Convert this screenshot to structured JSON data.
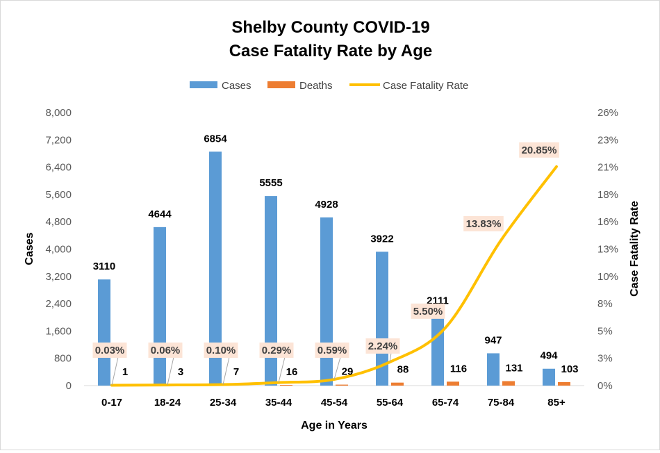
{
  "chart_data": {
    "type": "bar",
    "title_lines": [
      "Shelby County COVID-19",
      "Case Fatality Rate by Age"
    ],
    "xlabel": "Age in Years",
    "ylabel": "Cases",
    "y2label": "Case Fatality Rate",
    "categories": [
      "0-17",
      "18-24",
      "25-34",
      "35-44",
      "45-54",
      "55-64",
      "65-74",
      "75-84",
      "85+"
    ],
    "series": [
      {
        "name": "Cases",
        "type": "bar",
        "axis": "left",
        "color": "#5b9bd5",
        "values": [
          3110,
          4644,
          6854,
          5555,
          4928,
          3922,
          2111,
          947,
          494
        ],
        "labels": [
          "3110",
          "4644",
          "6854",
          "5555",
          "4928",
          "3922",
          "2111",
          "947",
          "494"
        ]
      },
      {
        "name": "Deaths",
        "type": "bar",
        "axis": "left",
        "color": "#ed7d31",
        "values": [
          1,
          3,
          7,
          16,
          29,
          88,
          116,
          131,
          103
        ],
        "labels": [
          "1",
          "3",
          "7",
          "16",
          "29",
          "88",
          "116",
          "131",
          "103"
        ]
      },
      {
        "name": "Case Fatality Rate",
        "type": "line",
        "axis": "right",
        "color": "#ffc000",
        "values": [
          0.03,
          0.06,
          0.1,
          0.29,
          0.59,
          2.24,
          5.5,
          13.83,
          20.85
        ],
        "labels": [
          "0.03%",
          "0.06%",
          "0.10%",
          "0.29%",
          "0.59%",
          "2.24%",
          "5.50%",
          "13.83%",
          "20.85%"
        ]
      }
    ],
    "ylim": [
      0,
      8000
    ],
    "yticks": [
      "0",
      "800",
      "1,600",
      "2,400",
      "3,200",
      "4,000",
      "4,800",
      "5,600",
      "6,400",
      "7,200",
      "8,000"
    ],
    "y2lim": [
      0,
      26
    ],
    "y2ticks": [
      "0%",
      "3%",
      "5%",
      "8%",
      "10%",
      "13%",
      "16%",
      "18%",
      "21%",
      "23%",
      "26%"
    ],
    "legend_position": "top",
    "grid": false
  }
}
